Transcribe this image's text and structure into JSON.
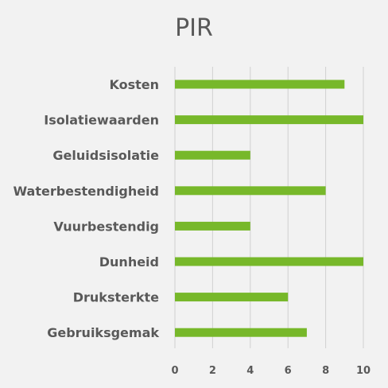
{
  "chart_data": {
    "type": "bar",
    "orientation": "horizontal",
    "title": "PIR",
    "categories": [
      "Kosten",
      "Isolatiewaarden",
      "Geluidsisolatie",
      "Waterbestendigheid",
      "Vuurbestendig",
      "Dunheid",
      "Druksterkte",
      "Gebruiksgemak"
    ],
    "values": [
      9,
      10,
      4,
      8,
      4,
      10,
      6,
      7
    ],
    "xlim": [
      0,
      10
    ],
    "x_ticks": [
      "0",
      "2",
      "4",
      "6",
      "8",
      "10"
    ],
    "grid": true,
    "bar_color": "#77b82a"
  }
}
